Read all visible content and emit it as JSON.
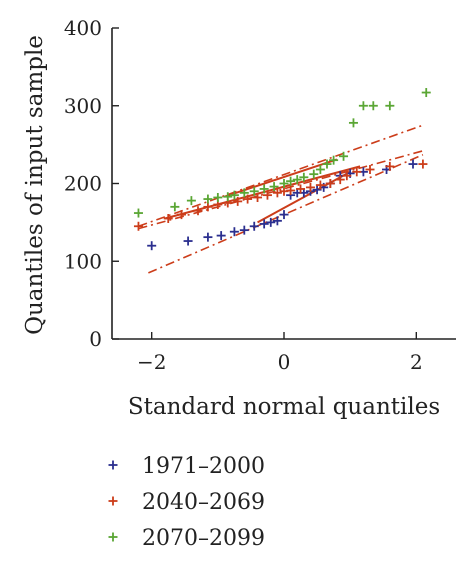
{
  "chart_data": {
    "type": "scatter",
    "title": "",
    "xlabel": "Standard normal quantiles",
    "ylabel": "Quantiles of input sample",
    "xlim": [
      -2.6,
      2.6
    ],
    "ylim": [
      0,
      400
    ],
    "xticks": [
      -2,
      0,
      2
    ],
    "xtick_labels": [
      "−2",
      "0",
      "2"
    ],
    "yticks": [
      0,
      100,
      200,
      300,
      400
    ],
    "ytick_labels": [
      "0",
      "100",
      "200",
      "300",
      "400"
    ],
    "grid": false,
    "legend_position": "bottom",
    "series": [
      {
        "name": "1971–2000",
        "color": "#2b2f8f",
        "marker": "+",
        "x": [
          -2.0,
          -1.45,
          -1.15,
          -0.95,
          -0.75,
          -0.6,
          -0.45,
          -0.3,
          -0.2,
          -0.1,
          0.0,
          0.1,
          0.2,
          0.3,
          0.4,
          0.5,
          0.6,
          0.7,
          0.85,
          1.0,
          1.2,
          1.55,
          1.95
        ],
        "y": [
          120,
          126,
          131,
          133,
          138,
          140,
          145,
          148,
          150,
          152,
          160,
          185,
          188,
          188,
          190,
          192,
          195,
          200,
          210,
          213,
          215,
          218,
          225
        ],
        "fit_line": {
          "x": [
            -0.4,
            1.0
          ],
          "y": [
            150,
            215
          ]
        },
        "fit_extension": {
          "x": [
            -2.05,
            2.1
          ],
          "y": [
            85,
            237
          ]
        }
      },
      {
        "name": "2040–2069",
        "color": "#cc3d1a",
        "marker": "+",
        "x": [
          -2.2,
          -1.75,
          -1.55,
          -1.3,
          -1.15,
          -1.0,
          -0.85,
          -0.7,
          -0.55,
          -0.4,
          -0.25,
          -0.1,
          0.0,
          0.1,
          0.25,
          0.4,
          0.55,
          0.7,
          0.85,
          0.95,
          1.1,
          1.3,
          1.6,
          2.1
        ],
        "y": [
          145,
          155,
          160,
          165,
          170,
          173,
          175,
          177,
          180,
          182,
          185,
          188,
          190,
          191,
          193,
          195,
          198,
          200,
          205,
          210,
          215,
          218,
          222,
          225
        ],
        "fit_line": {
          "x": [
            -1.8,
            1.15
          ],
          "y": [
            155,
            222
          ]
        },
        "fit_extension": {
          "x": [
            -2.2,
            2.1
          ],
          "y": [
            142,
            242
          ]
        }
      },
      {
        "name": "2070–2099",
        "color": "#5aa634",
        "marker": "+",
        "x": [
          -2.2,
          -1.65,
          -1.4,
          -1.15,
          -1.0,
          -0.85,
          -0.75,
          -0.6,
          -0.45,
          -0.3,
          -0.15,
          0.0,
          0.1,
          0.2,
          0.3,
          0.45,
          0.55,
          0.65,
          0.75,
          0.9,
          1.05,
          1.2,
          1.35,
          1.6,
          2.15
        ],
        "y": [
          162,
          170,
          178,
          180,
          182,
          183,
          185,
          188,
          190,
          193,
          196,
          200,
          203,
          205,
          208,
          212,
          218,
          225,
          230,
          235,
          278,
          300,
          300,
          300,
          317
        ],
        "fit_line": {
          "x": [
            -0.9,
            0.8
          ],
          "y": [
            183,
            231
          ]
        },
        "fit_extension": {
          "x": [
            -2.2,
            2.1
          ],
          "y": [
            145,
            275
          ]
        }
      }
    ]
  }
}
